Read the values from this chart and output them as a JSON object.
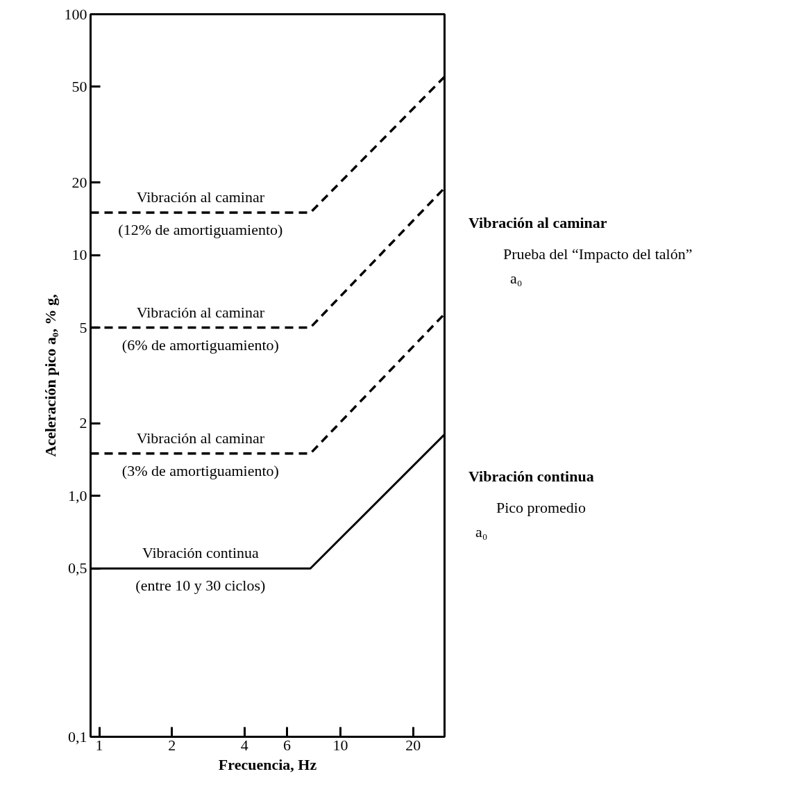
{
  "chart_data": {
    "type": "line",
    "xlabel": "Frecuencia, Hz",
    "ylabel": "Aceleración pico a₀, % g,",
    "log": "xy",
    "grid": false,
    "marker": "none",
    "xlim": [
      0.92,
      27
    ],
    "xticks": [
      1,
      2,
      4,
      6,
      10,
      20
    ],
    "ylim": [
      0.1,
      100
    ],
    "yticks": [
      {
        "value": 0.1,
        "label": "0,1"
      },
      {
        "value": 0.5,
        "label": "0,5"
      },
      {
        "value": 1,
        "label": "1,0"
      },
      2,
      5,
      10,
      20,
      50,
      100
    ],
    "series": [
      {
        "name": "Vibración al caminar\n(12% de amortiguamiento)",
        "color": "#000000",
        "line_style": "dashed",
        "x": [
          0.92,
          7.5,
          27
        ],
        "values": [
          15,
          15,
          55
        ]
      },
      {
        "name": "Vibración al caminar\n(6% de amortiguamiento)",
        "color": "#000000",
        "line_style": "dashed",
        "x": [
          0.92,
          7.5,
          27
        ],
        "values": [
          5,
          5,
          19
        ]
      },
      {
        "name": "Vibración al caminar\n(3% de amortiguamiento)",
        "color": "#000000",
        "line_style": "dashed",
        "x": [
          0.92,
          7.5,
          27
        ],
        "values": [
          1.5,
          1.5,
          5.7
        ]
      },
      {
        "name": "Vibración continua\n(entre 10 y 30 ciclos)",
        "color": "#000000",
        "line_style": "solid",
        "x": [
          0.92,
          7.5,
          27
        ],
        "values": [
          0.5,
          0.5,
          1.8
        ]
      }
    ],
    "annotations": [
      "Vibración al caminar",
      "Prueba del “Impacto del talón”",
      "a₀",
      "Vibración continua",
      "Pico promedio",
      "a₀"
    ]
  }
}
